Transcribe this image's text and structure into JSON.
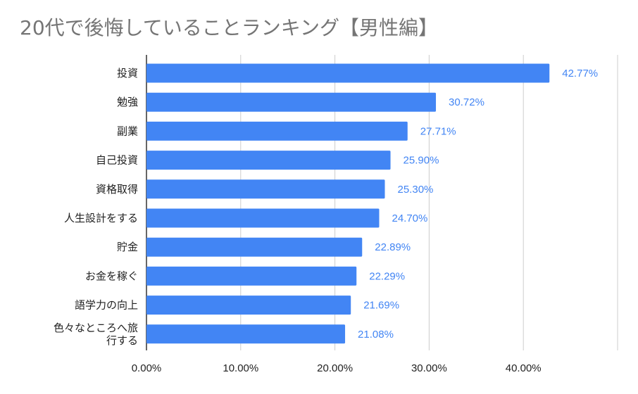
{
  "chart_data": {
    "type": "bar",
    "orientation": "horizontal",
    "title": "20代で後悔していることランキング【男性編】",
    "categories": [
      "投資",
      "勉強",
      "副業",
      "自己投資",
      "資格取得",
      "人生設計をする",
      "貯金",
      "お金を稼ぐ",
      "語学力の向上",
      "色々なところへ旅行する"
    ],
    "values": [
      42.77,
      30.72,
      27.71,
      25.9,
      25.3,
      24.7,
      22.89,
      22.29,
      21.69,
      21.08
    ],
    "value_labels": [
      "42.77%",
      "30.72%",
      "27.71%",
      "25.90%",
      "25.30%",
      "24.70%",
      "22.89%",
      "22.29%",
      "21.69%",
      "21.08%"
    ],
    "xticks": [
      "0.00%",
      "10.00%",
      "20.00%",
      "30.00%",
      "40.00%"
    ],
    "xlim": [
      0,
      50
    ],
    "grid": true,
    "legend": "none",
    "colors": {
      "bar": "#4285f4",
      "data_label": "#4285f4",
      "grid": "#cccccc",
      "axis": "#333333",
      "title": "#757575"
    }
  }
}
